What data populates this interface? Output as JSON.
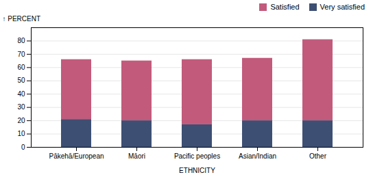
{
  "chart_data": {
    "type": "bar",
    "stacked": true,
    "xlabel": "ETHNICITY",
    "ylabel": "PERCENT",
    "categories": [
      "Pākehā/European",
      "Māori",
      "Pacific peoples",
      "Asian/Indian",
      "Other"
    ],
    "series": [
      {
        "name": "Very satisfied",
        "color": "#3d4f73",
        "values": [
          21,
          20,
          17,
          20,
          20
        ]
      },
      {
        "name": "Satisfied",
        "color": "#c25a7c",
        "values": [
          45,
          45,
          49,
          47,
          61
        ]
      }
    ],
    "ylim": [
      0,
      90
    ],
    "yticks": [
      0,
      10,
      20,
      30,
      40,
      50,
      60,
      70,
      80
    ],
    "grid": true,
    "legend": "upper right"
  }
}
